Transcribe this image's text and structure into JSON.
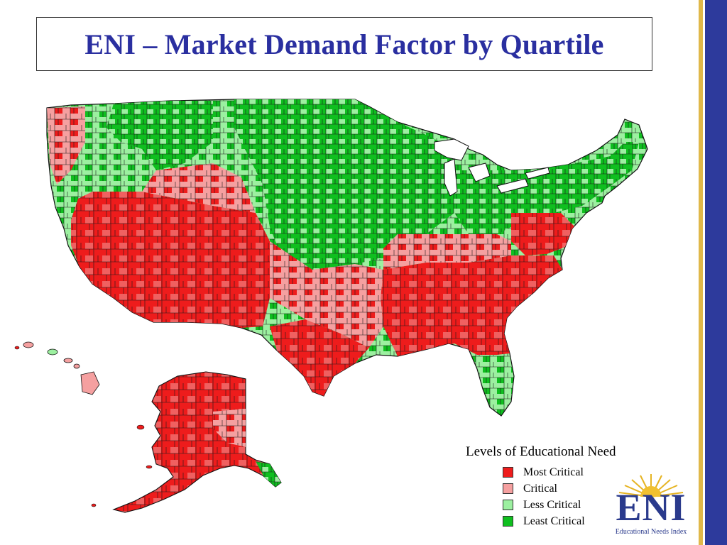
{
  "title": "ENI – Market Demand Factor by Quartile",
  "legend": {
    "title": "Levels of Educational Need",
    "items": [
      {
        "label": "Most Critical",
        "color": "#ee1c1c"
      },
      {
        "label": "Critical",
        "color": "#f5a0a0"
      },
      {
        "label": "Less Critical",
        "color": "#9cf0a0"
      },
      {
        "label": "Least Critical",
        "color": "#0fbf1f"
      }
    ]
  },
  "logo": {
    "text": "ENI",
    "subtitle": "Educational Needs Index"
  },
  "colors": {
    "most_critical": "#ee1c1c",
    "critical": "#f5a0a0",
    "less_critical": "#9cf0a0",
    "least_critical": "#0fbf1f",
    "title_blue": "#2a2fa0",
    "sidebar_blue": "#2d3a9c",
    "sidebar_gold": "#e0b84a"
  }
}
